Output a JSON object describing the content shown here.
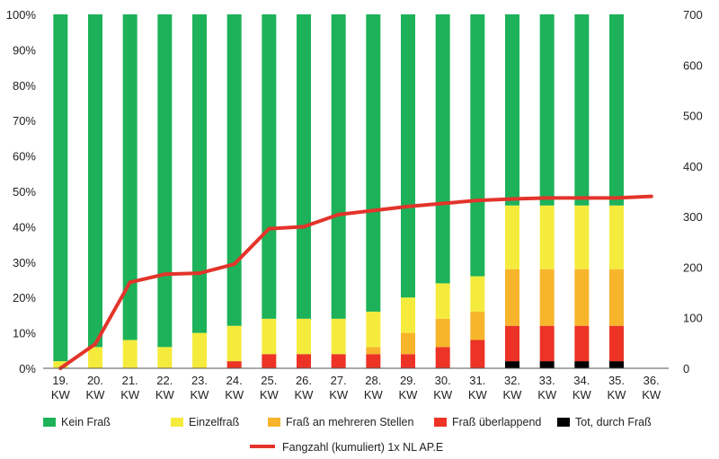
{
  "chart_data": {
    "type": "bar",
    "stacked": true,
    "categories": [
      "19. KW",
      "20. KW",
      "21. KW",
      "22. KW",
      "23. KW",
      "24. KW",
      "25. KW",
      "26. KW",
      "27. KW",
      "28. KW",
      "29. KW",
      "30. KW",
      "31. KW",
      "32. KW",
      "33. KW",
      "34. KW",
      "35. KW",
      "36. KW"
    ],
    "series": [
      {
        "name": "Tot, durch Fraß",
        "color": "#000000",
        "values": [
          0,
          0,
          0,
          0,
          0,
          0,
          0,
          0,
          0,
          0,
          0,
          0,
          0,
          2,
          2,
          2,
          2,
          0
        ]
      },
      {
        "name": "Fraß überlappend",
        "color": "#ec3326",
        "values": [
          0,
          0,
          0,
          0,
          0,
          2,
          4,
          4,
          4,
          4,
          4,
          6,
          8,
          10,
          10,
          10,
          10,
          0
        ]
      },
      {
        "name": "Fraß an mehreren Stellen",
        "color": "#f7b52c",
        "values": [
          0,
          0,
          0,
          0,
          0,
          0,
          0,
          0,
          0,
          2,
          6,
          8,
          8,
          16,
          16,
          16,
          16,
          0
        ]
      },
      {
        "name": "Einzelfraß",
        "color": "#f5eb3d",
        "values": [
          2,
          6,
          8,
          6,
          10,
          10,
          10,
          10,
          10,
          10,
          10,
          10,
          10,
          18,
          18,
          18,
          18,
          0
        ]
      },
      {
        "name": "Kein Fraß",
        "color": "#1db25a",
        "values": [
          98,
          94,
          92,
          94,
          90,
          88,
          86,
          86,
          86,
          84,
          80,
          76,
          74,
          54,
          54,
          54,
          54,
          0
        ]
      }
    ],
    "line": {
      "name": "Fangzahl (kumuliert) 1x NL AP.E",
      "color": "#e3342b",
      "values": [
        0,
        48,
        170,
        186,
        188,
        206,
        276,
        280,
        304,
        312,
        320,
        326,
        332,
        335,
        337,
        337,
        337,
        340
      ]
    },
    "y_left": {
      "min": 0,
      "max": 100,
      "ticks": [
        "0%",
        "10%",
        "20%",
        "30%",
        "40%",
        "50%",
        "60%",
        "70%",
        "80%",
        "90%",
        "100%"
      ]
    },
    "y_right": {
      "min": 0,
      "max": 700,
      "ticks": [
        "0",
        "100",
        "200",
        "300",
        "400",
        "500",
        "600",
        "700"
      ]
    },
    "legend_position": "bottom",
    "grid": false,
    "title": ""
  },
  "legend": {
    "items": [
      {
        "label": "Kein Fraß",
        "color": "#1db25a"
      },
      {
        "label": "Einzelfraß",
        "color": "#f5eb3d"
      },
      {
        "label": "Fraß an mehreren Stellen",
        "color": "#f7b52c"
      },
      {
        "label": "Fraß überlappend",
        "color": "#ec3326"
      },
      {
        "label": "Tot, durch Fraß",
        "color": "#000000"
      }
    ],
    "line_label": "Fangzahl (kumuliert) 1x NL AP.E",
    "line_color": "#e3342b"
  }
}
